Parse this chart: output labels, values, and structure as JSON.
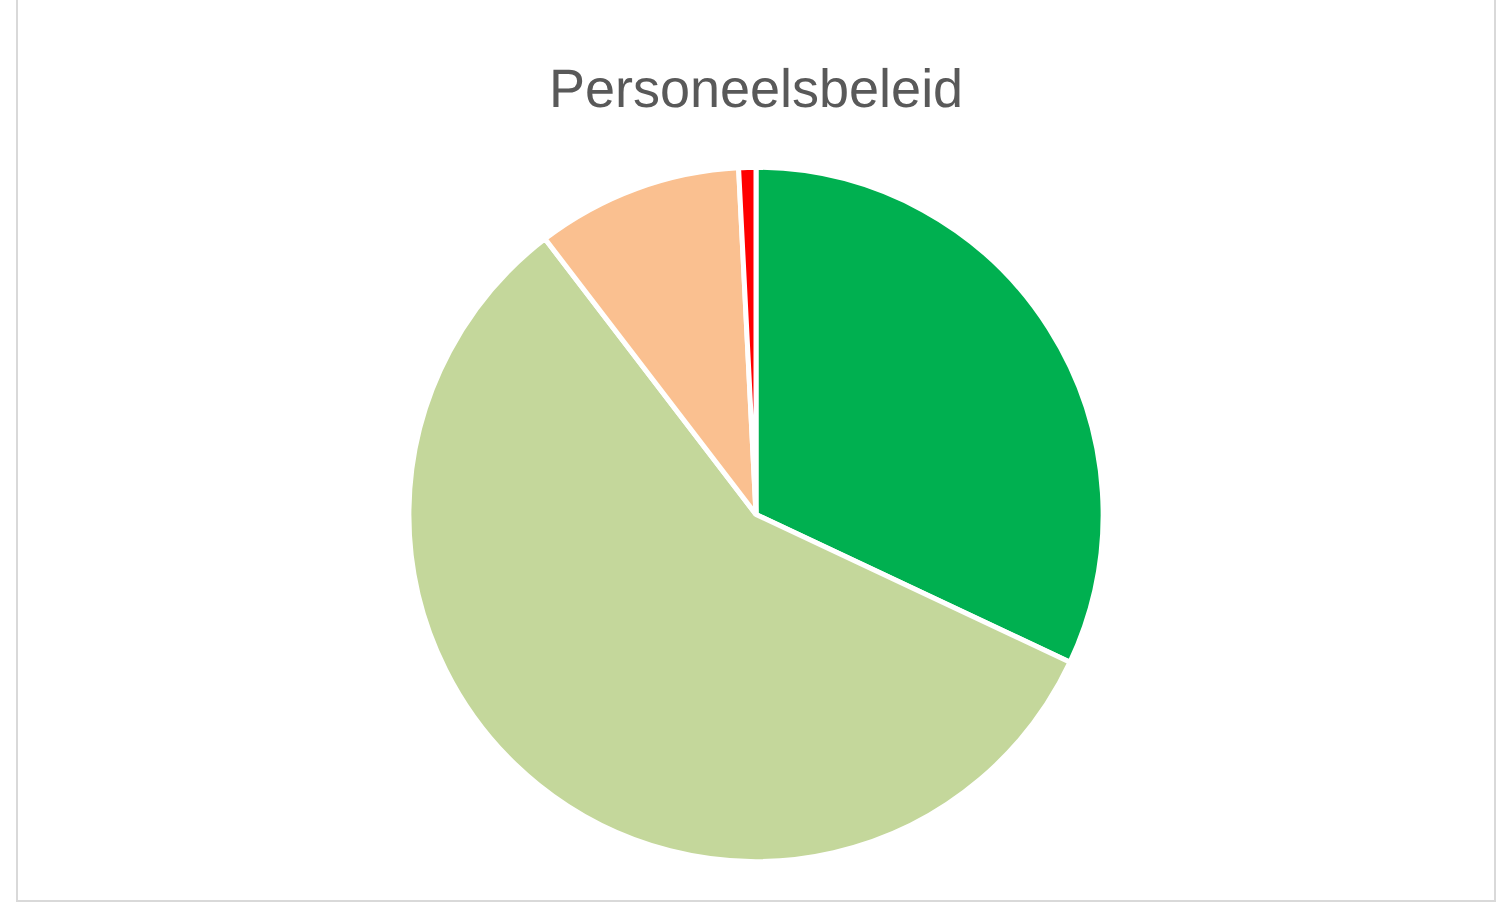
{
  "chart_data": {
    "type": "pie",
    "title": "Personeelsbeleid",
    "categories": [
      null,
      null,
      null,
      null
    ],
    "values": [
      32,
      57.6,
      9.6,
      0.8
    ],
    "colors": [
      "#00b050",
      "#c4d79b",
      "#fac090",
      "#ff0000"
    ],
    "legend": false
  }
}
